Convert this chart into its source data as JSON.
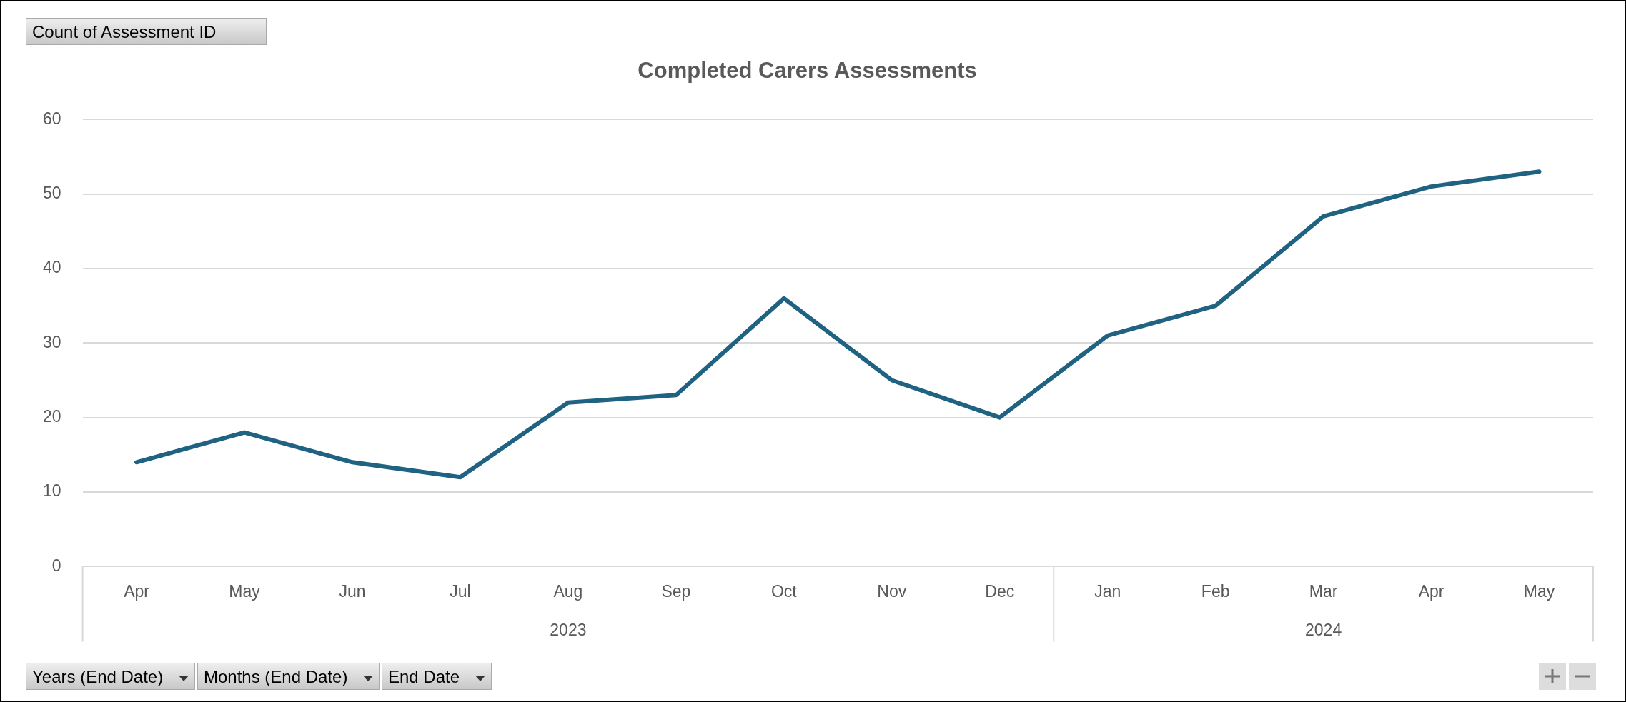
{
  "chart_data": {
    "type": "line",
    "title": "Completed Carers Assessments",
    "categories": [
      "Apr",
      "May",
      "Jun",
      "Jul",
      "Aug",
      "Sep",
      "Oct",
      "Nov",
      "Dec",
      "Jan",
      "Feb",
      "Mar",
      "Apr",
      "May"
    ],
    "series": [
      {
        "color": "#1f6282",
        "values": [
          14,
          18,
          14,
          12,
          22,
          23,
          36,
          25,
          20,
          31,
          35,
          47,
          51,
          53
        ]
      }
    ],
    "ylim": [
      0,
      60
    ],
    "yticks": [
      0,
      10,
      20,
      30,
      40,
      50,
      60
    ],
    "grid": "y",
    "legend": false,
    "marker": "none",
    "line_style": "solid",
    "annotations": [
      "Count of Assessment ID",
      "Years (End Date)",
      "Months (End Date)",
      "End Date",
      "2023",
      "2024"
    ]
  }
}
